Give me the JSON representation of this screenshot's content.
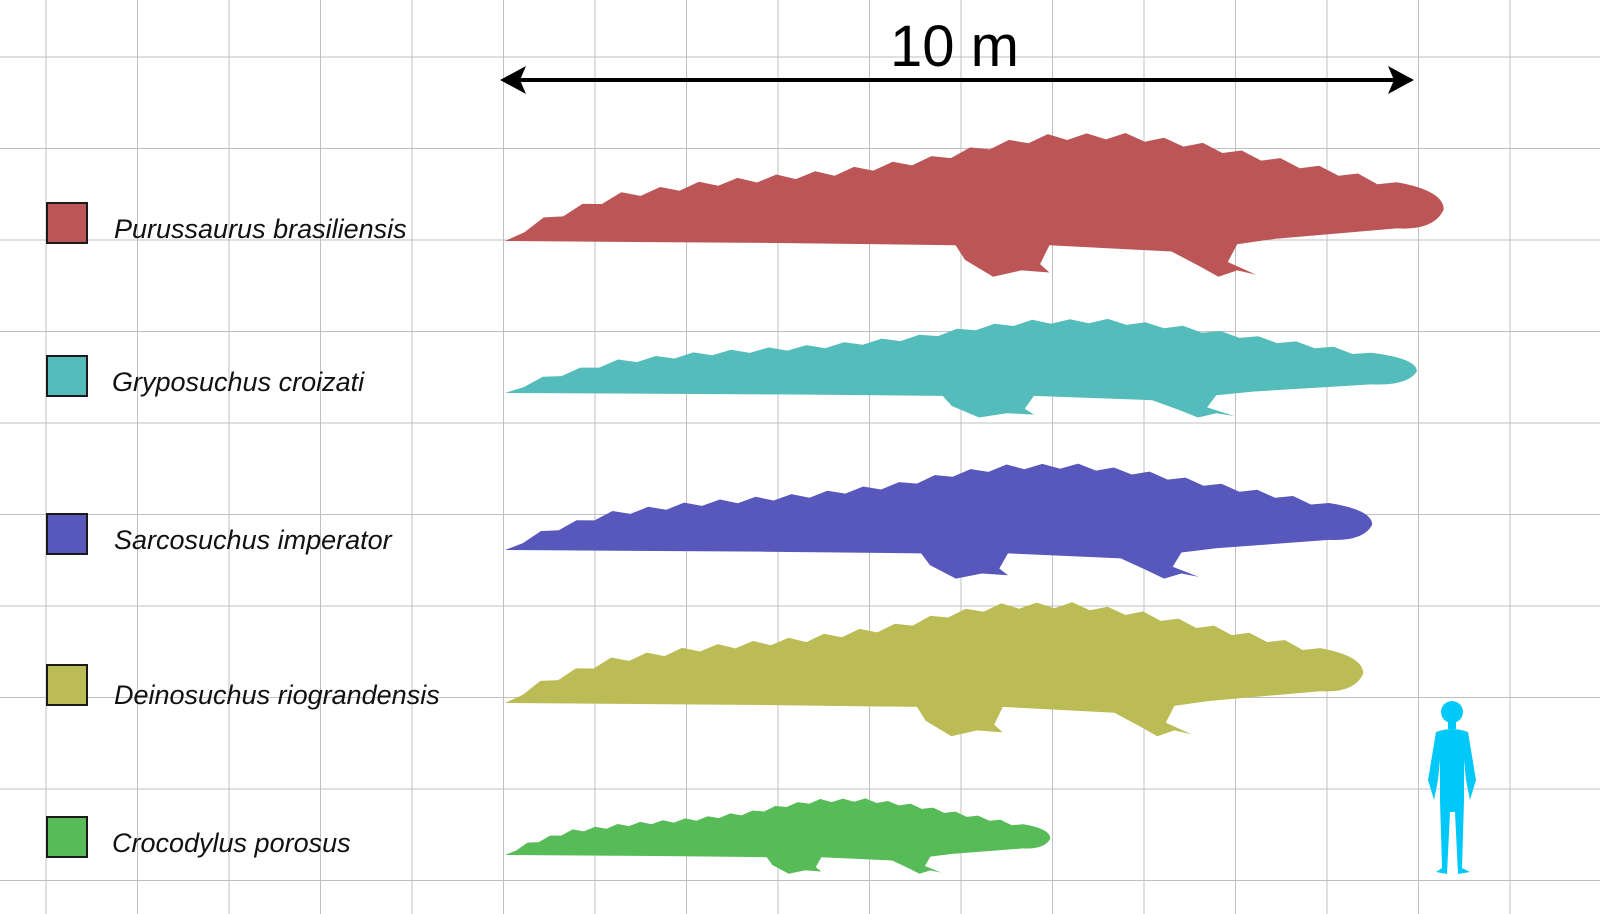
{
  "scale_bar": {
    "label": "10 m",
    "length_m": 10
  },
  "colors": {
    "grid": "#c0c0c0",
    "arrow": "#000000",
    "human": "#00c8f8"
  },
  "species": [
    {
      "name": "Purussaurus brasiliensis",
      "color": "#bc5656",
      "length_m": 10.5
    },
    {
      "name": "Gryposuchus croizati",
      "color": "#55bcbc",
      "length_m": 10.2
    },
    {
      "name": "Sarcosuchus imperator",
      "color": "#5757bc",
      "length_m": 9.7
    },
    {
      "name": "Deinosuchus riograndensis",
      "color": "#bcbc56",
      "length_m": 9.6
    },
    {
      "name": "Crocodylus porosus",
      "color": "#57bc57",
      "length_m": 6.1
    }
  ],
  "human": {
    "icon": "human-silhouette-icon"
  }
}
